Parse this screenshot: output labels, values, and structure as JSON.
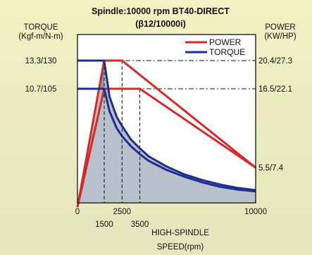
{
  "chart_data": {
    "type": "line",
    "title": "Spindle:10000 rpm BT40-DIRECT",
    "subtitle": "(β12/10000i)",
    "ylabel_left": [
      "TORQUE",
      "(Kgf-m/N-m)"
    ],
    "ylabel_right": [
      "POWER",
      "(KW/HP)"
    ],
    "xlabel": [
      "HIGH-SPINDLE",
      "SPEED(rpm)"
    ],
    "xlim": [
      0,
      10000
    ],
    "x_ticks": [
      {
        "value": 0,
        "label": "0",
        "row": 1
      },
      {
        "value": 1500,
        "label": "1500",
        "row": 2
      },
      {
        "value": 2500,
        "label": "2500",
        "row": 1
      },
      {
        "value": 3500,
        "label": "3500",
        "row": 2
      },
      {
        "value": 10000,
        "label": "10000",
        "row": 1
      }
    ],
    "left_ticks": [
      {
        "label": "13.3/130",
        "level": 130
      },
      {
        "label": "10.7/105",
        "level": 105
      }
    ],
    "right_ticks": [
      {
        "label": "20.4/27.3",
        "level": 130
      },
      {
        "label": "16.5/22.1",
        "level": 105
      },
      {
        "label": "5.5/7.4",
        "level": 35
      }
    ],
    "legend": {
      "position": "top-right",
      "entries": [
        {
          "name": "POWER",
          "color": "#d42a2a"
        },
        {
          "name": "TORQUE",
          "color": "#1f2f8f"
        }
      ]
    },
    "series": [
      {
        "name": "POWER",
        "color": "#d42a2a",
        "segments": [
          [
            [
              0,
              0
            ],
            [
              1500,
              105
            ],
            [
              3500,
              105
            ],
            [
              10000,
              35
            ]
          ],
          [
            [
              0,
              0
            ],
            [
              1500,
              130
            ],
            [
              2500,
              130
            ],
            [
              10000,
              35
            ]
          ]
        ]
      },
      {
        "name": "TORQUE",
        "color": "#1f2f8f",
        "segments": [
          [
            [
              0,
              130
            ],
            [
              1500,
              130
            ],
            [
              1800,
              98
            ],
            [
              2200,
              80
            ],
            [
              2500,
              72
            ],
            [
              3000,
              60
            ],
            [
              3500,
              52
            ],
            [
              4000,
              45
            ],
            [
              5000,
              36
            ],
            [
              6000,
              29
            ],
            [
              7000,
              24
            ],
            [
              8000,
              20
            ],
            [
              9000,
              17
            ],
            [
              10000,
              15
            ]
          ],
          [
            [
              0,
              105
            ],
            [
              1500,
              105
            ],
            [
              1800,
              85
            ],
            [
              2200,
              70
            ],
            [
              2500,
              63
            ],
            [
              3000,
              54
            ],
            [
              3500,
              47
            ],
            [
              4000,
              41
            ],
            [
              5000,
              33
            ],
            [
              6000,
              27
            ],
            [
              7000,
              22
            ],
            [
              8000,
              18
            ],
            [
              9000,
              15.5
            ],
            [
              10000,
              14
            ]
          ]
        ]
      }
    ],
    "reference_lines": [
      {
        "type": "horizontal",
        "level": 130,
        "style": "dashdot"
      },
      {
        "type": "horizontal",
        "level": 105,
        "style": "dashdot"
      },
      {
        "type": "vertical",
        "value": 1500,
        "style": "dashed"
      },
      {
        "type": "vertical",
        "value": 2500,
        "style": "dashed"
      },
      {
        "type": "vertical",
        "value": 3500,
        "style": "dashed"
      }
    ],
    "colors": {
      "plot_background": "#ffffff",
      "torque_fill": "#b8c0cc",
      "torque_fill_dark": "#8f97a2",
      "frame": "#111111"
    }
  }
}
